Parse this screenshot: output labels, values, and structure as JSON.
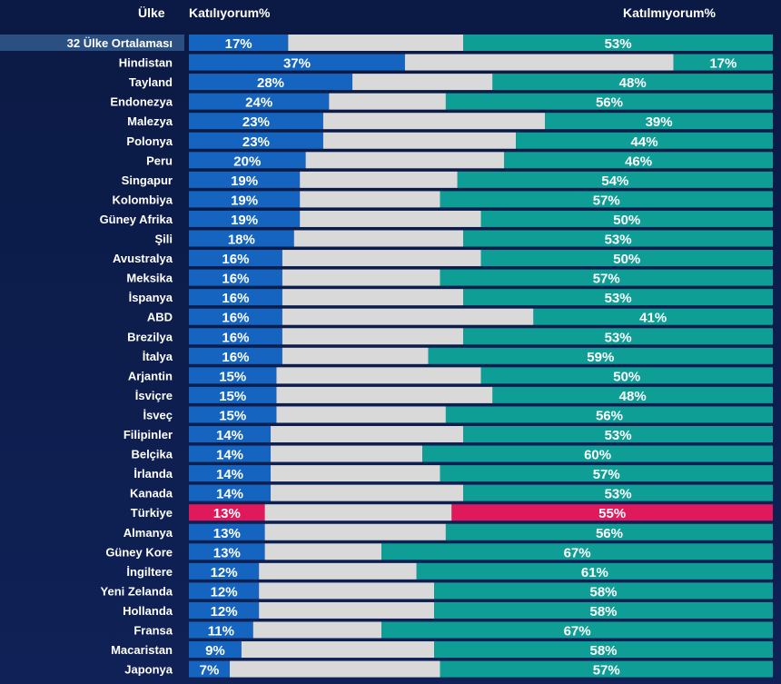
{
  "header": {
    "country_label": "Ülke",
    "agree_label": "Katılıyorum%",
    "disagree_label": "Katılmıyorum%"
  },
  "colors": {
    "agree": "#1565c0",
    "neutral": "#d9d9d9",
    "disagree": "#0e9e96",
    "highlight": "#e0185c",
    "average_label_bg": "#2a4f80",
    "background": "#0d1b45"
  },
  "chart_data": {
    "type": "bar",
    "stacked": true,
    "orientation": "horizontal",
    "title": "",
    "xlabel": "",
    "ylabel": "",
    "xlim": [
      0,
      100
    ],
    "highlight_category": "Türkiye",
    "average_category": "32 Ülke Ortalaması",
    "categories": [
      "32 Ülke Ortalaması",
      "Hindistan",
      "Tayland",
      "Endonezya",
      "Malezya",
      "Polonya",
      "Peru",
      "Singapur",
      "Kolombiya",
      "Güney Afrika",
      "Şili",
      "Avustralya",
      "Meksika",
      "İspanya",
      "ABD",
      "Brezilya",
      "İtalya",
      "Arjantin",
      "İsviçre",
      "İsveç",
      "Filipinler",
      "Belçika",
      "İrlanda",
      "Kanada",
      "Türkiye",
      "Almanya",
      "Güney Kore",
      "İngiltere",
      "Yeni Zelanda",
      "Hollanda",
      "Fransa",
      "Macaristan",
      "Japonya"
    ],
    "series": [
      {
        "name": "Katılıyorum%",
        "values": [
          17,
          37,
          28,
          24,
          23,
          23,
          20,
          19,
          19,
          19,
          18,
          16,
          16,
          16,
          16,
          16,
          16,
          15,
          15,
          15,
          14,
          14,
          14,
          14,
          13,
          13,
          13,
          12,
          12,
          12,
          11,
          9,
          7
        ]
      },
      {
        "name": "Katılmıyorum%",
        "values": [
          53,
          17,
          48,
          56,
          39,
          44,
          46,
          54,
          57,
          50,
          53,
          50,
          57,
          53,
          41,
          53,
          59,
          50,
          48,
          56,
          53,
          60,
          57,
          53,
          55,
          56,
          67,
          61,
          58,
          58,
          67,
          58,
          57
        ]
      }
    ]
  }
}
